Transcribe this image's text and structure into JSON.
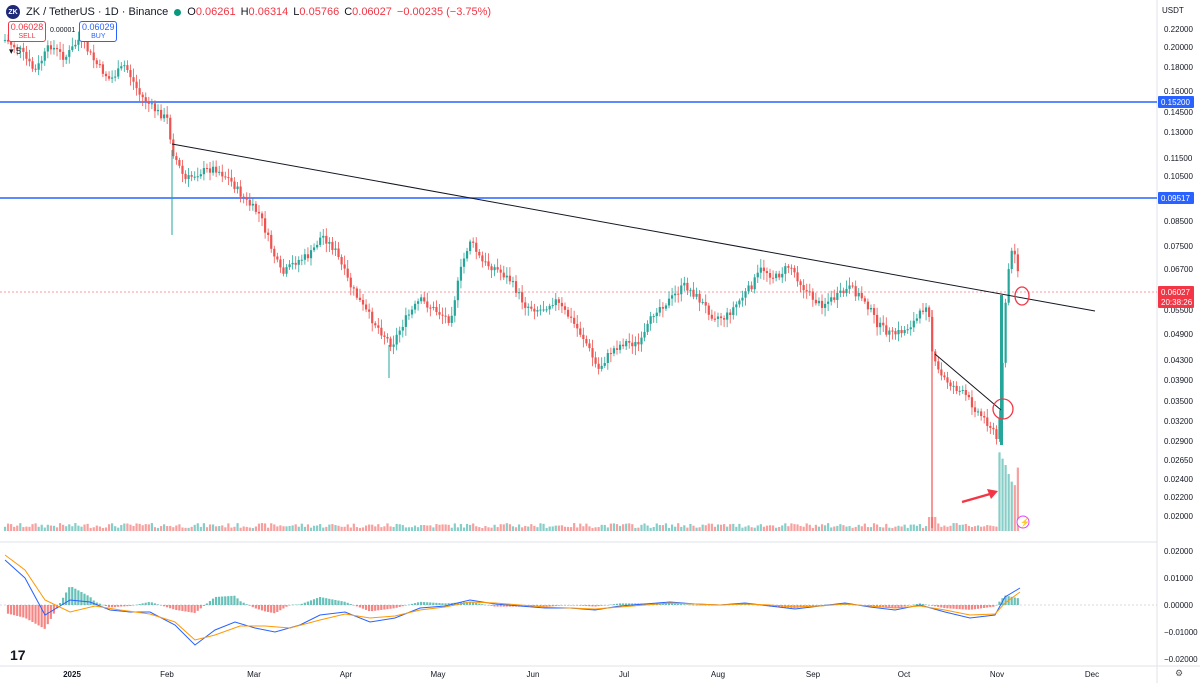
{
  "header": {
    "symbol": "ZK / TetherUS · 1D · Binance",
    "logo_text": "ZK",
    "open_label": "O",
    "open": "0.06261",
    "high_label": "H",
    "high": "0.06314",
    "low_label": "L",
    "low": "0.05766",
    "close_label": "C",
    "close": "0.06027",
    "change": "−0.00235 (−3.75%)",
    "sell_price": "0.06028",
    "sell_label": "SELL",
    "buy_price": "0.06029",
    "buy_label": "BUY",
    "spread": "0.00001",
    "quantity": "5"
  },
  "currency": "USDT",
  "price_axis": {
    "ticks": [
      "0.22000",
      "0.20000",
      "0.18000",
      "0.16000",
      "0.14500",
      "0.13000",
      "0.11500",
      "0.10500",
      "0.09500",
      "0.08500",
      "0.07500",
      "0.06700",
      "0.05500",
      "0.04900",
      "0.04300",
      "0.03900",
      "0.03500",
      "0.03200",
      "0.02900",
      "0.02650",
      "0.02400",
      "0.02200",
      "0.02000"
    ],
    "tags": [
      {
        "text": "0.15200",
        "color": "#2962ff"
      },
      {
        "text": "0.09517",
        "color": "#2962ff"
      },
      {
        "text": "0.06027",
        "color": "#f23645"
      },
      {
        "text": "20:38:26",
        "color": "#f23645"
      }
    ]
  },
  "indicator_axis": {
    "ticks": [
      "0.02000",
      "0.01000",
      "0.00000",
      "−0.01000",
      "−0.02000"
    ]
  },
  "time_axis": {
    "ticks": [
      "2025",
      "Feb",
      "Mar",
      "Apr",
      "May",
      "Jun",
      "Jul",
      "Aug",
      "Sep",
      "Oct",
      "Nov",
      "Dec"
    ]
  },
  "colors": {
    "up": "#26a69a",
    "down": "#ef5350",
    "level": "#2962ff",
    "trend": "#131722",
    "macd": "#2962ff",
    "signal": "#ff9800"
  },
  "icons": {
    "logo": "tradingview-logo",
    "settings": "gear-icon",
    "lightning": "lightning-icon"
  },
  "footer": {
    "tv_logo": "17"
  }
}
